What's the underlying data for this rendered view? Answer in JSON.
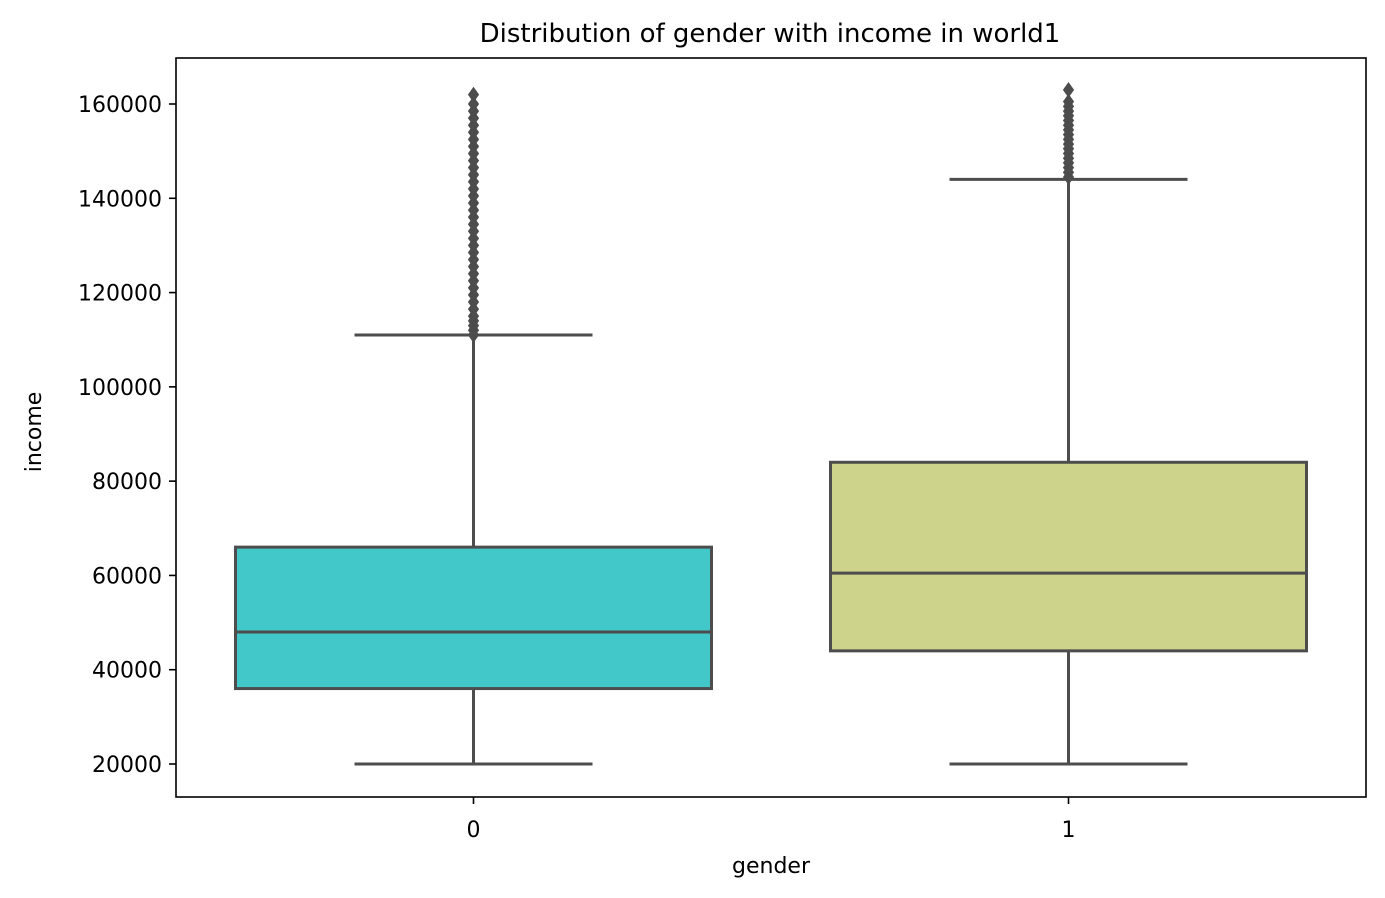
{
  "chart_data": {
    "type": "box",
    "title": "Distribution of gender with income in world1",
    "xlabel": "gender",
    "ylabel": "income",
    "categories": [
      "0",
      "1"
    ],
    "ylim": [
      13000,
      170000
    ],
    "yticks": [
      20000,
      40000,
      60000,
      80000,
      100000,
      120000,
      140000,
      160000
    ],
    "yticklabels": [
      "20000",
      "40000",
      "60000",
      "80000",
      "100000",
      "120000",
      "140000",
      "160000"
    ],
    "grid": false,
    "legend": "none",
    "boxes": [
      {
        "category": "0",
        "color": "#42c8c8",
        "whisker_low": 20000,
        "q1": 36000,
        "median": 48000,
        "q3": 66000,
        "whisker_high": 111000,
        "outliers": [
          111000,
          112000,
          113000,
          114000,
          115000,
          116500,
          118000,
          119500,
          121000,
          122500,
          124000,
          125500,
          127000,
          128500,
          130000,
          131500,
          133000,
          134500,
          136000,
          137500,
          139000,
          140500,
          142000,
          143500,
          145000,
          146500,
          148000,
          149500,
          151000,
          152500,
          154000,
          155500,
          157000,
          158500,
          160000,
          162000
        ]
      },
      {
        "category": "1",
        "color": "#cdd38b",
        "whisker_low": 20000,
        "q1": 44000,
        "median": 60500,
        "q3": 84000,
        "whisker_high": 144000,
        "outliers": [
          144500,
          145500,
          146500,
          147500,
          148500,
          149500,
          150500,
          151500,
          152500,
          153500,
          154500,
          155500,
          156500,
          157500,
          158500,
          159500,
          160500,
          163000
        ]
      }
    ],
    "line_color": "#4d4d4d"
  }
}
